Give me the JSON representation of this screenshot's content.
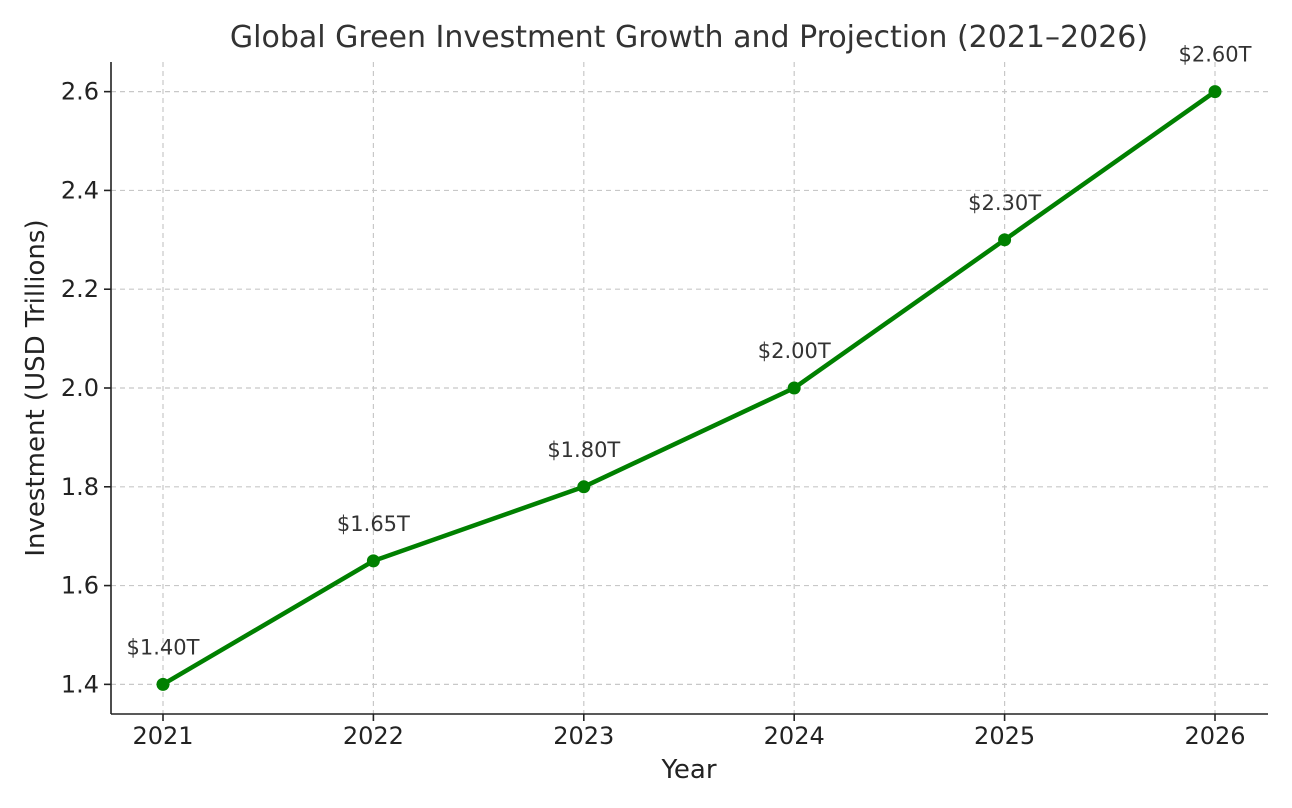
{
  "chart_data": {
    "type": "line",
    "title": "Global Green Investment Growth and Projection (2021–2026)",
    "xlabel": "Year",
    "ylabel": "Investment (USD Trillions)",
    "categories": [
      "2021",
      "2022",
      "2023",
      "2024",
      "2025",
      "2026"
    ],
    "series": [
      {
        "values": [
          1.4,
          1.65,
          1.8,
          2.0,
          2.3,
          2.6
        ],
        "data_labels": [
          "$1.40T",
          "$1.65T",
          "$1.80T",
          "$2.00T",
          "$2.30T",
          "$2.60T"
        ],
        "color": "#008000",
        "marker": "circle"
      }
    ],
    "yticks": [
      "1.4",
      "1.6",
      "1.8",
      "2.0",
      "2.2",
      "2.4",
      "2.6"
    ],
    "ylim": [
      1.34,
      2.66
    ],
    "grid": true,
    "legend": false
  }
}
